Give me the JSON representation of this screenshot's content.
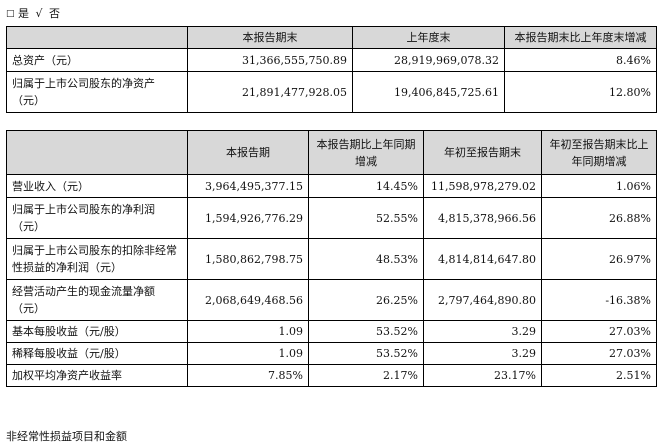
{
  "options": {
    "box": "□",
    "yes": "是",
    "check": "√",
    "no": "否"
  },
  "table1": {
    "headers": [
      "",
      "本报告期末",
      "上年度末",
      "本报告期末比上年度末增减"
    ],
    "rows": [
      {
        "label": "总资产（元）",
        "current": "31,366,555,750.89",
        "prior": "28,919,969,078.32",
        "change": "8.46%"
      },
      {
        "label": "归属于上市公司股东的净资产（元）",
        "current": "21,891,477,928.05",
        "prior": "19,406,845,725.61",
        "change": "12.80%"
      }
    ]
  },
  "table2": {
    "headers": [
      "",
      "本报告期",
      "本报告期比上年同期增减",
      "年初至报告期末",
      "年初至报告期末比上年同期增减"
    ],
    "rows": [
      {
        "label": "营业收入（元）",
        "current": "3,964,495,377.15",
        "yoy": "14.45%",
        "ytd": "11,598,978,279.02",
        "ytd_yoy": "1.06%"
      },
      {
        "label": "归属于上市公司股东的净利润（元）",
        "current": "1,594,926,776.29",
        "yoy": "52.55%",
        "ytd": "4,815,378,966.56",
        "ytd_yoy": "26.88%"
      },
      {
        "label": "归属于上市公司股东的扣除非经常性损益的净利润（元）",
        "current": "1,580,862,798.75",
        "yoy": "48.53%",
        "ytd": "4,814,814,647.80",
        "ytd_yoy": "26.97%"
      },
      {
        "label": "经营活动产生的现金流量净额（元）",
        "current": "2,068,649,468.56",
        "yoy": "26.25%",
        "ytd": "2,797,464,890.80",
        "ytd_yoy": "-16.38%"
      },
      {
        "label": "基本每股收益（元/股）",
        "current": "1.09",
        "yoy": "53.52%",
        "ytd": "3.29",
        "ytd_yoy": "27.03%"
      },
      {
        "label": "稀释每股收益（元/股）",
        "current": "1.09",
        "yoy": "53.52%",
        "ytd": "3.29",
        "ytd_yoy": "27.03%"
      },
      {
        "label": "加权平均净资产收益率",
        "current": "7.85%",
        "yoy": "2.17%",
        "ytd": "23.17%",
        "ytd_yoy": "2.51%"
      }
    ]
  },
  "footer": "非经常性损益项目和金额"
}
